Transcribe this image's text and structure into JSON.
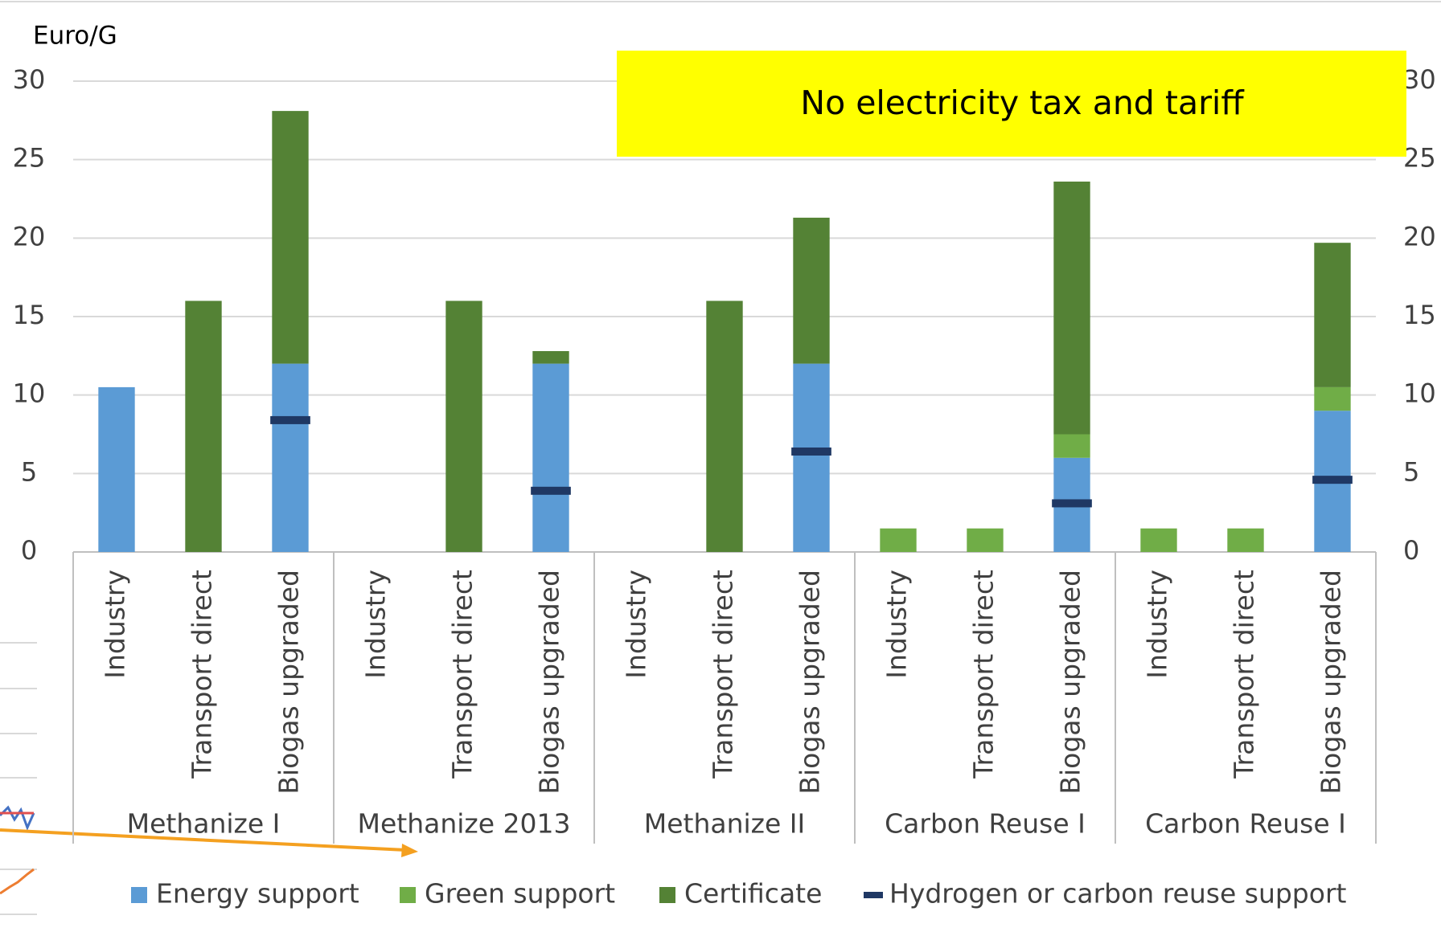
{
  "chart_data": {
    "type": "bar",
    "stacked": true,
    "y_label": "Euro/G",
    "annotation": "No electricity tax and tariff",
    "annotation_color": "#ffff00",
    "categories": [
      "Industry",
      "Transport direct",
      "Biogas upgraded",
      "Industry",
      "Transport direct",
      "Biogas upgraded",
      "Industry",
      "Transport direct",
      "Biogas upgraded",
      "Industry",
      "Transport direct",
      "Biogas upgraded",
      "Industry",
      "Transport direct",
      "Biogas upgraded"
    ],
    "groups": [
      "Methanize I",
      "Methanize 2013",
      "Methanize II",
      "Carbon Reuse I",
      "Carbon Reuse I"
    ],
    "series": [
      {
        "name": "Energy support",
        "color": "#5b9bd5",
        "values": [
          10.5,
          0,
          12,
          0,
          0,
          12,
          0,
          0,
          12,
          0,
          0,
          6,
          0,
          0,
          9
        ]
      },
      {
        "name": "Green support",
        "color": "#70ad47",
        "values": [
          0,
          0,
          0,
          0,
          0,
          0,
          0,
          0,
          0,
          1.5,
          1.5,
          1.5,
          1.5,
          1.5,
          1.5
        ]
      },
      {
        "name": "Certificate",
        "color": "#548235",
        "values": [
          0,
          16,
          16.1,
          0,
          16,
          0.8,
          0,
          16,
          9.3,
          0,
          0,
          16.1,
          0,
          0,
          9.2
        ]
      },
      {
        "name": "Hydrogen or carbon reuse support",
        "color": "#1f3864",
        "marker": "dash",
        "values": [
          null,
          null,
          8.4,
          null,
          null,
          3.9,
          null,
          null,
          6.4,
          null,
          null,
          3.1,
          null,
          null,
          4.6
        ]
      }
    ],
    "ylim": [
      0,
      30
    ],
    "yticks": [
      0,
      5,
      10,
      15,
      20,
      25,
      30
    ],
    "y2lim": [
      0,
      30
    ],
    "y2ticks": [
      0,
      5,
      10,
      15,
      20,
      25,
      30
    ],
    "grid": true,
    "legend": "bottom"
  }
}
